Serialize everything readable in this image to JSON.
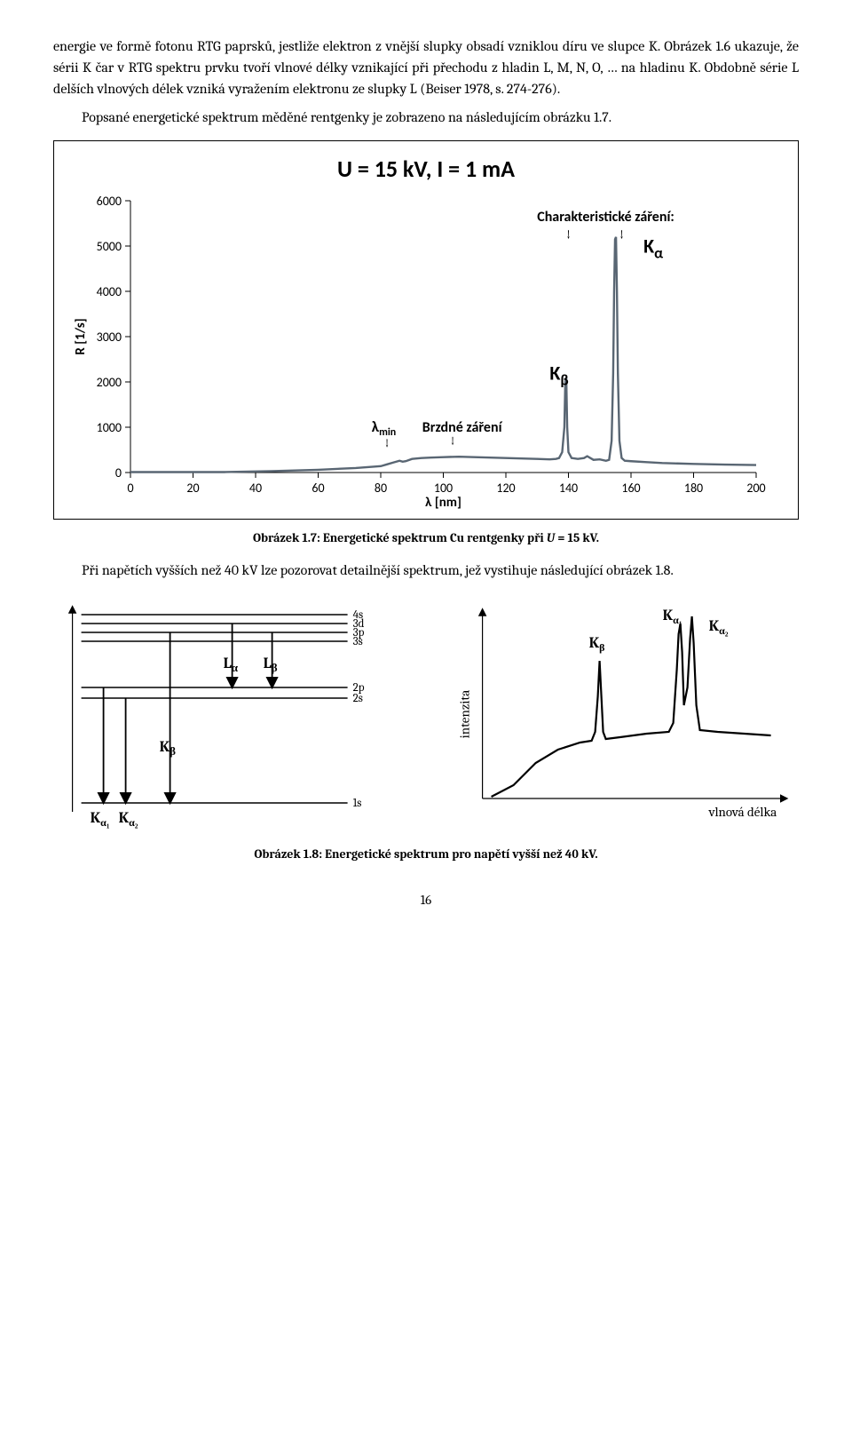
{
  "para1": "energie ve formě fotonu RTG paprsků, jestliže elektron z vnější slupky obsadí vzniklou díru ve slupce K. Obrázek 1.6 ukazuje, že sérii K čar v RTG spektru prvku tvoří vlnové délky vznikající při přechodu z hladin L, M, N, O, … na hladinu K. Obdobně série L delších vlnových délek vzniká vyražením elektronu ze slupky L (Beiser 1978, s. 274-276).",
  "para2": "Popsané energetické spektrum měděné rentgenky je zobrazeno na následujícím obrázku 1.7.",
  "chart": {
    "title": "U = 15 kV, I = 1 mA",
    "ylabel": "R [1/s]",
    "xlabel": "λ [nm]",
    "x_ticks": [
      0,
      20,
      40,
      60,
      80,
      100,
      120,
      140,
      160,
      180,
      200
    ],
    "y_ticks": [
      0,
      1000,
      2000,
      3000,
      4000,
      5000,
      6000
    ],
    "xlim": [
      0,
      200
    ],
    "ylim": [
      0,
      6000
    ],
    "annot_char": "Charakteristické záření:",
    "annot_Ka": "K",
    "annot_Ka_sub": "α",
    "annot_Kb": "K",
    "annot_Kb_sub": "β",
    "annot_lmin": "λ",
    "annot_lmin_sub": "min",
    "annot_brzdne": "Brzdné záření",
    "line_color": "#596673",
    "line_width": 2.4,
    "grid_color": "#000",
    "title_fontsize": 26,
    "tick_fontsize": 14,
    "points": [
      [
        0,
        10
      ],
      [
        30,
        10
      ],
      [
        45,
        30
      ],
      [
        60,
        60
      ],
      [
        72,
        100
      ],
      [
        80,
        140
      ],
      [
        82,
        180
      ],
      [
        84,
        220
      ],
      [
        85,
        240
      ],
      [
        86,
        260
      ],
      [
        87,
        240
      ],
      [
        88,
        250
      ],
      [
        90,
        300
      ],
      [
        93,
        320
      ],
      [
        96,
        330
      ],
      [
        100,
        340
      ],
      [
        105,
        350
      ],
      [
        110,
        340
      ],
      [
        115,
        330
      ],
      [
        120,
        320
      ],
      [
        125,
        310
      ],
      [
        130,
        300
      ],
      [
        132,
        295
      ],
      [
        134,
        290
      ],
      [
        136,
        300
      ],
      [
        137,
        320
      ],
      [
        138,
        450
      ],
      [
        138.7,
        1000
      ],
      [
        139,
        2000
      ],
      [
        139.3,
        2100
      ],
      [
        139.6,
        1000
      ],
      [
        140,
        450
      ],
      [
        141,
        320
      ],
      [
        143,
        300
      ],
      [
        145,
        320
      ],
      [
        146,
        360
      ],
      [
        147,
        320
      ],
      [
        148,
        280
      ],
      [
        150,
        290
      ],
      [
        152,
        260
      ],
      [
        153,
        280
      ],
      [
        153.8,
        700
      ],
      [
        154.3,
        2200
      ],
      [
        154.6,
        4000
      ],
      [
        154.9,
        5150
      ],
      [
        155.2,
        5200
      ],
      [
        155.5,
        4000
      ],
      [
        155.8,
        2200
      ],
      [
        156.3,
        700
      ],
      [
        157,
        320
      ],
      [
        158,
        260
      ],
      [
        160,
        250
      ],
      [
        165,
        230
      ],
      [
        170,
        210
      ],
      [
        180,
        190
      ],
      [
        190,
        175
      ],
      [
        200,
        165
      ]
    ]
  },
  "caption1_a": "Obrázek 1.7: Energetické spektrum Cu rentgenky při ",
  "caption1_b": "U",
  "caption1_c": " = 15 kV.",
  "para3": "Při napětích vyšších než 40 kV lze pozorovat detailnější spektrum, jež vystihuje následující obrázek 1.8.",
  "fig18": {
    "levels": [
      "4s",
      "3d",
      "3p",
      "3s",
      "2p",
      "2s",
      "1s"
    ],
    "L_alpha": "L",
    "L_alpha_sub": "α",
    "L_beta": "L",
    "L_beta_sub": "β",
    "K_beta": "K",
    "K_beta_sub": "β",
    "K_a1": "K",
    "K_a1_sub": "α₁",
    "K_a2": "K",
    "K_a2_sub": "α₂",
    "intenzita": "intenzita",
    "vlnova": "vlnová délka",
    "Kb_lbl": "K",
    "Kb_lbl_sub": "β",
    "Ka1_lbl": "K",
    "Ka1_lbl_sub": "α₁",
    "Ka2_lbl": "K",
    "Ka2_lbl_sub": "α₂"
  },
  "caption2": "Obrázek 1.8: Energetické spektrum pro napětí vyšší než 40 kV.",
  "pagenum": "16"
}
